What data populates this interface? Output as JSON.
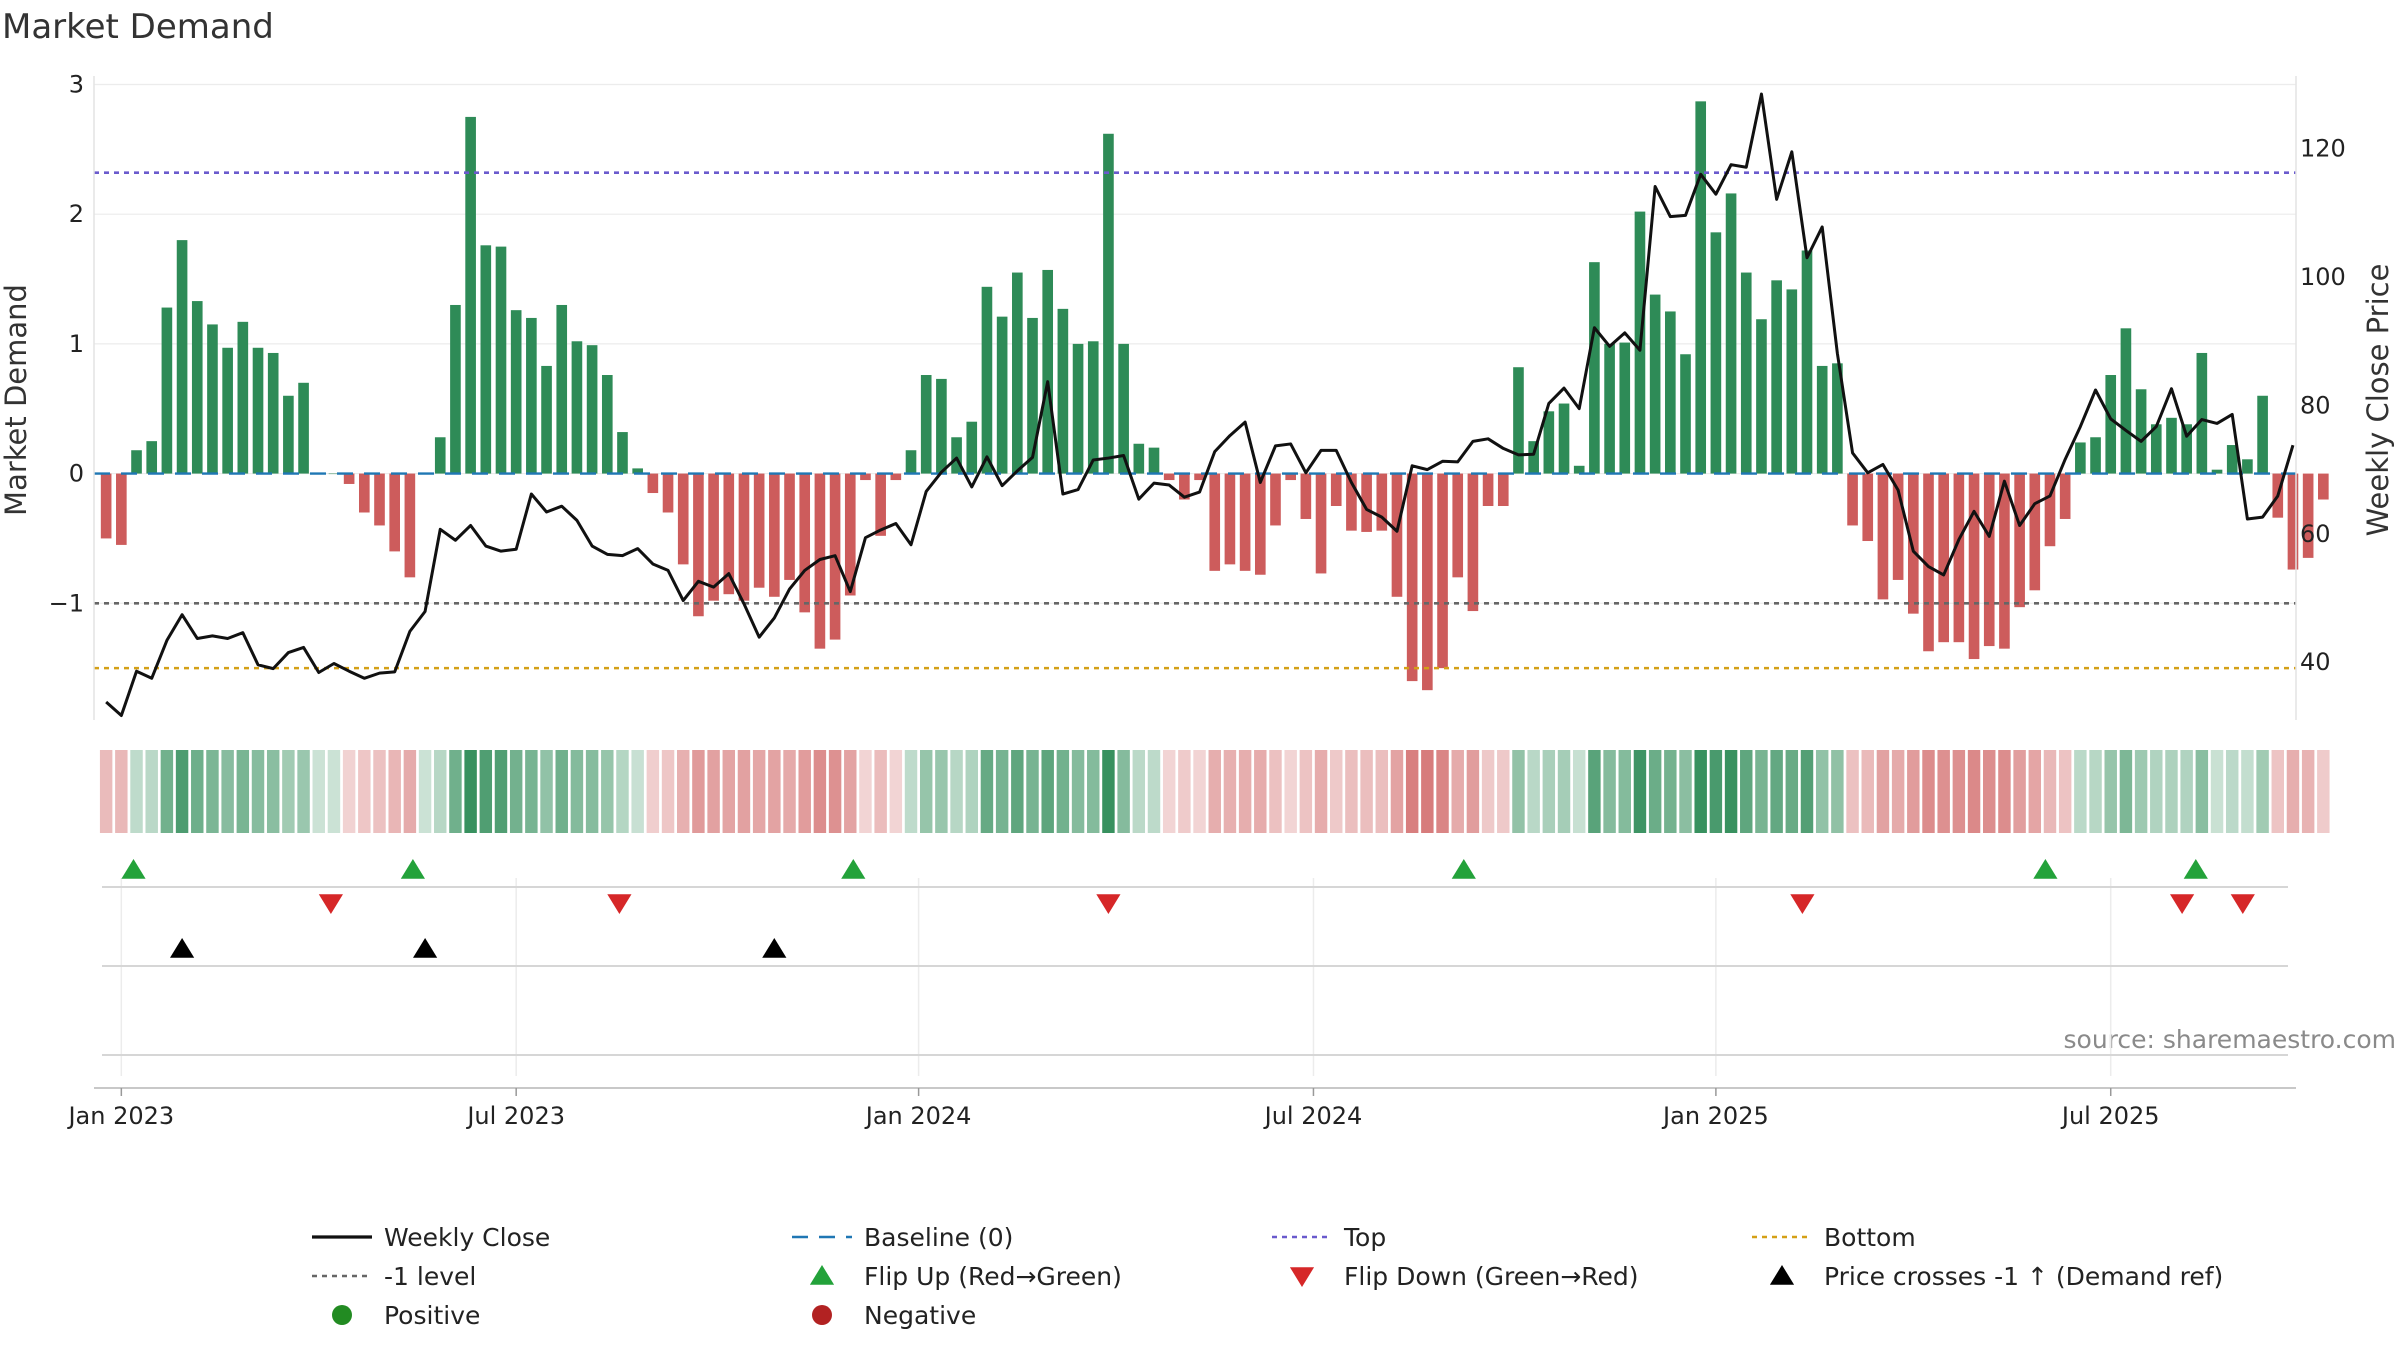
{
  "chart_data": {
    "type": "bar",
    "title": "Market Demand",
    "ylabel_left": "Market Demand",
    "ylabel_right": "Weekly Close Price",
    "ylim_left": [
      -1.9,
      3.05
    ],
    "ylim_right": [
      31,
      131
    ],
    "yticks_left": [
      {
        "v": 3,
        "label": "3"
      },
      {
        "v": 2,
        "label": "2"
      },
      {
        "v": 1,
        "label": "1"
      },
      {
        "v": 0,
        "label": "0"
      },
      {
        "v": -1,
        "label": "−1"
      }
    ],
    "yticks_right": [
      {
        "v": 120,
        "label": "120"
      },
      {
        "v": 100,
        "label": "100"
      },
      {
        "v": 80,
        "label": "80"
      },
      {
        "v": 60,
        "label": "60"
      },
      {
        "v": 40,
        "label": "40"
      }
    ],
    "xticks": [
      {
        "week": 1,
        "label": "Jan 2023"
      },
      {
        "week": 27,
        "label": "Jul 2023"
      },
      {
        "week": 53.5,
        "label": "Jan 2024"
      },
      {
        "week": 79.5,
        "label": "Jul 2024"
      },
      {
        "week": 106,
        "label": "Jan 2025"
      },
      {
        "week": 132,
        "label": "Jul 2025"
      }
    ],
    "week_range": [
      -0.8,
      144.2
    ],
    "reference_lines": [
      {
        "name": "Top",
        "value": 2.32,
        "color": "#6a5acd"
      },
      {
        "name": "-1 level",
        "value": -1,
        "color": "#666666"
      },
      {
        "name": "Bottom",
        "value": -1.5,
        "color": "#d4a017"
      },
      {
        "name": "Baseline (0)",
        "value": 0,
        "color": "#1f77b4"
      }
    ],
    "market_demand": [
      -0.5,
      -0.55,
      0.18,
      0.25,
      1.28,
      1.8,
      1.33,
      1.15,
      0.97,
      1.17,
      0.97,
      0.93,
      0.6,
      0.7,
      0.0,
      0.0,
      -0.08,
      -0.3,
      -0.4,
      -0.6,
      -0.8,
      0.0,
      0.28,
      1.3,
      2.75,
      1.76,
      1.75,
      1.26,
      1.2,
      0.83,
      1.3,
      1.02,
      0.99,
      0.76,
      0.32,
      0.04,
      -0.15,
      -0.3,
      -0.7,
      -1.1,
      -0.98,
      -0.93,
      -0.98,
      -0.88,
      -0.95,
      -0.82,
      -1.07,
      -1.35,
      -1.28,
      -0.94,
      -0.05,
      -0.48,
      -0.05,
      0.18,
      0.76,
      0.73,
      0.28,
      0.4,
      1.44,
      1.21,
      1.55,
      1.2,
      1.57,
      1.27,
      1.0,
      1.02,
      2.62,
      1.0,
      0.23,
      0.2,
      -0.05,
      -0.2,
      -0.05,
      -0.75,
      -0.7,
      -0.75,
      -0.78,
      -0.4,
      -0.05,
      -0.35,
      -0.77,
      -0.25,
      -0.44,
      -0.45,
      -0.44,
      -0.95,
      -1.6,
      -1.67,
      -1.5,
      -0.8,
      -1.06,
      -0.25,
      -0.25,
      0.82,
      0.25,
      0.48,
      0.54,
      0.06,
      1.63,
      1.0,
      1.01,
      2.02,
      1.38,
      1.25,
      0.92,
      2.87,
      1.86,
      2.16,
      1.55,
      1.19,
      1.49,
      1.42,
      1.72,
      0.83,
      0.85,
      -0.4,
      -0.52,
      -0.97,
      -0.82,
      -1.08,
      -1.37,
      -1.3,
      -1.3,
      -1.43,
      -1.33,
      -1.35,
      -1.03,
      -0.9,
      -0.56,
      -0.35,
      0.24,
      0.28,
      0.76,
      1.12,
      0.65,
      0.38,
      0.43,
      0.38,
      0.93,
      0.03,
      0.22,
      0.11,
      0.6,
      -0.34,
      -0.74,
      -0.65,
      -0.2
    ],
    "weekly_close": [
      33.8,
      31.7,
      38.6,
      37.5,
      43.4,
      47.4,
      43.7,
      44.1,
      43.7,
      44.6,
      39.6,
      39.0,
      41.5,
      42.3,
      38.4,
      39.8,
      38.6,
      37.5,
      38.3,
      38.5,
      44.8,
      47.9,
      60.7,
      59.0,
      61.3,
      58.1,
      57.3,
      57.6,
      66.2,
      63.4,
      64.3,
      62.1,
      58.1,
      56.8,
      56.6,
      57.7,
      55.3,
      54.3,
      49.6,
      52.6,
      51.7,
      53.8,
      49.1,
      43.9,
      46.9,
      51.4,
      54.3,
      56.0,
      56.6,
      51.0,
      59.4,
      60.6,
      61.6,
      58.3,
      66.6,
      69.6,
      71.8,
      67.3,
      72.0,
      67.5,
      69.8,
      71.9,
      83.7,
      66.2,
      66.9,
      71.5,
      71.8,
      72.2,
      65.4,
      67.9,
      67.6,
      65.7,
      66.5,
      72.8,
      75.3,
      77.4,
      68.0,
      73.7,
      74.0,
      69.5,
      73.0,
      73.0,
      68.0,
      63.8,
      62.6,
      60.4,
      70.6,
      70.0,
      71.3,
      71.2,
      74.4,
      74.8,
      73.3,
      72.3,
      72.4,
      80.3,
      82.7,
      79.5,
      92.1,
      89.2,
      91.3,
      88.6,
      114.1,
      109.4,
      109.6,
      116.0,
      112.9,
      117.5,
      117.1,
      128.5,
      112.1,
      119.5,
      103.0,
      107.8,
      88.1,
      72.6,
      69.5,
      70.8,
      66.8,
      57.3,
      54.9,
      53.6,
      59.1,
      63.5,
      59.6,
      68.2,
      61.3,
      64.7,
      65.9,
      71.6,
      76.7,
      82.4,
      77.9,
      76.1,
      74.4,
      76.7,
      82.6,
      75.2,
      77.8,
      77.2,
      78.6,
      62.3,
      62.6,
      65.9,
      73.8
    ],
    "flip_up_weeks": [
      1.8,
      20.2,
      49.2,
      89.4,
      127.7,
      137.6
    ],
    "flip_down_weeks": [
      14.8,
      33.8,
      66.0,
      111.7,
      136.7,
      140.7
    ],
    "price_cross_weeks": [
      5.0,
      21.0,
      44.0
    ],
    "source": "source: sharemaestro.com",
    "colors": {
      "positive_bar": "#2e8b57",
      "negative_bar": "#cd5c5c",
      "price_line": "#111111",
      "flip_up": "#23a23a",
      "flip_down": "#d62728",
      "price_cross": "#000000",
      "positive_dot": "#228b22",
      "negative_dot": "#b22222",
      "strip_pos_rgb": [
        46,
        139,
        87
      ],
      "strip_neg_rgb": [
        205,
        92,
        92
      ]
    },
    "legend": [
      {
        "label": "Weekly Close",
        "type": "line",
        "color": "#111111",
        "dash": ""
      },
      {
        "label": "Baseline (0)",
        "type": "line",
        "color": "#1f77b4",
        "dash": "16,11"
      },
      {
        "label": "Top",
        "type": "line",
        "color": "#6a5acd",
        "dash": "5,5"
      },
      {
        "label": "Bottom",
        "type": "line",
        "color": "#d4a017",
        "dash": "5,5"
      },
      {
        "label": "-1 level",
        "type": "line",
        "color": "#666666",
        "dash": "5,5"
      },
      {
        "label": "Flip Up (Red→Green)",
        "type": "tri-up",
        "color": "#23a23a"
      },
      {
        "label": "Flip Down (Green→Red)",
        "type": "tri-down",
        "color": "#d62728"
      },
      {
        "label": "Price crosses -1 ↑ (Demand ref)",
        "type": "tri-up",
        "color": "#000000"
      },
      {
        "label": "Positive",
        "type": "dot",
        "color": "#228b22"
      },
      {
        "label": "Negative",
        "type": "dot",
        "color": "#b22222"
      }
    ]
  }
}
